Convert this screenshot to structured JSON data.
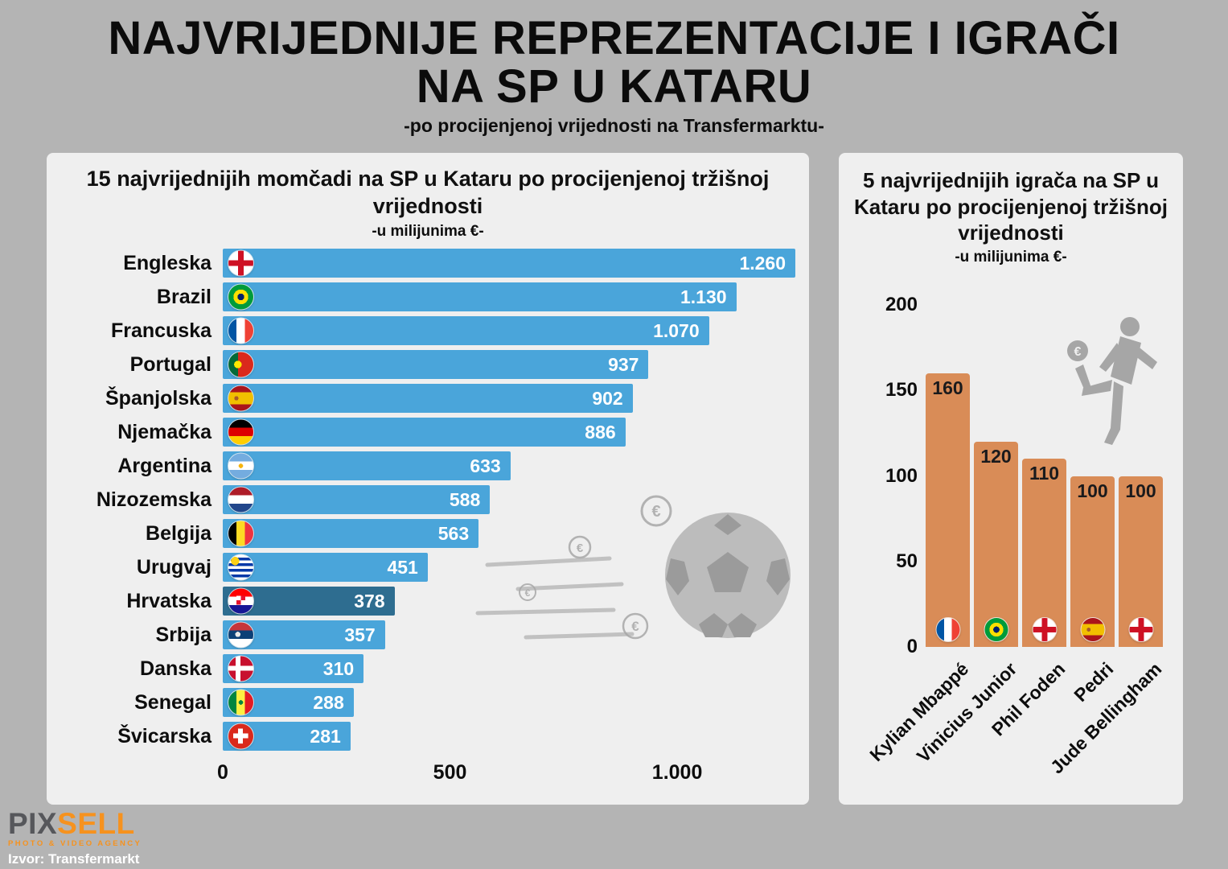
{
  "page": {
    "title_line1": "NAJVRIJEDNIJE REPREZENTACIJE I IGRAČI",
    "title_line2": "NA SP U KATARU",
    "subtitle": "-po procijenjenoj vrijednosti na Transfermarktu-"
  },
  "chart_data": [
    {
      "type": "bar",
      "orientation": "horizontal",
      "title": "15 najvrijednijih momčadi na SP u Kataru po procijenjenoj tržišnoj vrijednosti",
      "unit": "-u milijunima €-",
      "categories": [
        "Engleska",
        "Brazil",
        "Francuska",
        "Portugal",
        "Španjolska",
        "Njemačka",
        "Argentina",
        "Nizozemska",
        "Belgija",
        "Urugvaj",
        "Hrvatska",
        "Srbija",
        "Danska",
        "Senegal",
        "Švicarska"
      ],
      "values": [
        1260,
        1130,
        1070,
        937,
        902,
        886,
        633,
        588,
        563,
        451,
        378,
        357,
        310,
        288,
        281
      ],
      "value_labels": [
        "1.260",
        "1.130",
        "1.070",
        "937",
        "902",
        "886",
        "633",
        "588",
        "563",
        "451",
        "378",
        "357",
        "310",
        "288",
        "281"
      ],
      "flags": [
        "england",
        "brazil",
        "france",
        "portugal",
        "spain",
        "germany",
        "argentina",
        "netherlands",
        "belgium",
        "uruguay",
        "croatia",
        "serbia",
        "denmark",
        "senegal",
        "switzerland"
      ],
      "highlight_index": 10,
      "highlight_label": "Hrvatska",
      "xlim": [
        0,
        1260
      ],
      "xticks": [
        0,
        500,
        1000
      ],
      "xtick_labels": [
        "0",
        "500",
        "1.000"
      ],
      "bar_color": "#4aa5da",
      "highlight_color": "#2e6d90",
      "grid": false,
      "legend": false
    },
    {
      "type": "bar",
      "orientation": "vertical",
      "title": "5 najvrijednijih igrača na SP u Kataru po procijenjenoj tržišnoj vrijednosti",
      "unit": "-u milijunima €-",
      "categories": [
        "Kylian Mbappé",
        "Vinicius Junior",
        "Phil Foden",
        "Pedri",
        "Jude Bellingham"
      ],
      "values": [
        160,
        120,
        110,
        100,
        100
      ],
      "flags": [
        "france",
        "brazil",
        "england",
        "spain",
        "england"
      ],
      "ylim": [
        0,
        200
      ],
      "yticks": [
        0,
        50,
        100,
        150,
        200
      ],
      "bar_color": "#d98c57",
      "grid": false,
      "legend": false
    }
  ],
  "decor": {
    "euro": "€",
    "left_graphic": "soccer-ball-with-speed-lines-and-euro-coins",
    "right_graphic": "football-player-juggling-euro-coin"
  },
  "footer": {
    "logo_part1": "PIX",
    "logo_part2": "SELL",
    "logo_tagline": "PHOTO & VIDEO AGENCY",
    "source": "Izvor: Transfermarkt"
  }
}
